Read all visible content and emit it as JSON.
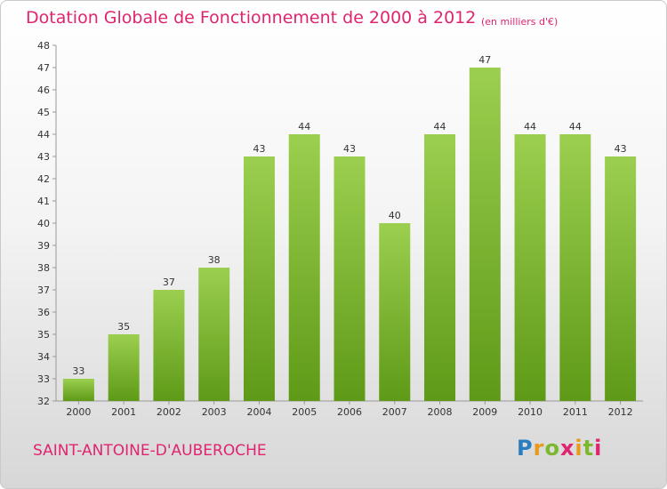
{
  "header": {
    "title": "Dotation Globale de Fonctionnement de 2000 à 2012",
    "unit_note": "(en milliers d'€)"
  },
  "footer": {
    "commune": "SAINT-ANTOINE-D'AUBEROCHE",
    "logo_text": "Proxiti"
  },
  "colors": {
    "accent": "#e0246f",
    "bar_top": "#9ccf4f",
    "bar_bottom": "#5e9a17"
  },
  "chart_data": {
    "type": "bar",
    "title": "Dotation Globale de Fonctionnement de 2000 à 2012",
    "subtitle": "(en milliers d'€)",
    "categories": [
      "2000",
      "2001",
      "2002",
      "2003",
      "2004",
      "2005",
      "2006",
      "2007",
      "2008",
      "2009",
      "2010",
      "2011",
      "2012"
    ],
    "values": [
      33,
      35,
      37,
      38,
      43,
      44,
      43,
      40,
      44,
      47,
      44,
      44,
      43
    ],
    "ylim": [
      32,
      48
    ],
    "yticks": [
      32,
      33,
      34,
      35,
      36,
      37,
      38,
      39,
      40,
      41,
      42,
      43,
      44,
      45,
      46,
      47,
      48
    ],
    "grid": false,
    "legend": "none"
  }
}
